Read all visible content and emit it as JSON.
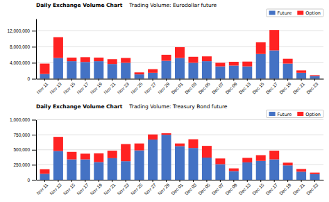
{
  "chart_data": [
    {
      "type": "bar",
      "stacked": true,
      "title": "Daily Exchange Volume Chart",
      "subtitle": "Trading Volume: Eurodollar future",
      "categories": [
        "Nov 11",
        "Nov 13",
        "Nov 15",
        "Nov 17",
        "Nov 19",
        "Nov 21",
        "Nov 23",
        "Nov 25",
        "Nov 27",
        "Nov 29",
        "Dec 01",
        "Dec 03",
        "Dec 05",
        "Dec 07",
        "Dec 09",
        "Dec 13",
        "Dec 15",
        "Dec 17",
        "Dec 19",
        "Dec 21",
        "Dec 23"
      ],
      "series": [
        {
          "name": "Future",
          "color": "#4472c4",
          "values": [
            1200000,
            5200000,
            4400000,
            4200000,
            4400000,
            3700000,
            4000000,
            1100000,
            1500000,
            4500000,
            5200000,
            4000000,
            4400000,
            3100000,
            3300000,
            3100000,
            6200000,
            7100000,
            3800000,
            1500000,
            700000
          ]
        },
        {
          "name": "Option",
          "color": "#ff2222",
          "values": [
            2600000,
            5200000,
            900000,
            1200000,
            900000,
            1200000,
            1200000,
            500000,
            900000,
            1500000,
            2700000,
            1500000,
            1200000,
            900000,
            950000,
            1200000,
            2900000,
            5100000,
            1200000,
            600000,
            200000
          ]
        }
      ],
      "ylim": [
        0,
        15000000
      ],
      "yticks": [
        0,
        {
          "value": 4000000,
          "label": "4,000,000"
        },
        {
          "value": 8000000,
          "label": "8,000,000"
        },
        {
          "value": 12000000,
          "label": "12,000,000"
        }
      ],
      "grid": true,
      "legend": "upper right"
    },
    {
      "type": "bar",
      "stacked": true,
      "title": "Daily Exchange Volume Chart",
      "subtitle": "Trading Volume: Treasury Bond future",
      "categories": [
        "Nov 11",
        "Nov 13",
        "Nov 15",
        "Nov 17",
        "Nov 19",
        "Nov 21",
        "Nov 23",
        "Nov 25",
        "Nov 27",
        "Nov 29",
        "Dec 01",
        "Dec 03",
        "Dec 05",
        "Dec 07",
        "Dec 09",
        "Dec 13",
        "Dec 15",
        "Dec 17",
        "Dec 19",
        "Dec 21",
        "Dec 23"
      ],
      "series": [
        {
          "name": "Future",
          "color": "#4472c4",
          "values": [
            100000,
            480000,
            340000,
            340000,
            295000,
            360000,
            310000,
            490000,
            670000,
            750000,
            560000,
            530000,
            370000,
            260000,
            145000,
            290000,
            315000,
            340000,
            240000,
            135000,
            95000
          ]
        },
        {
          "name": "Option",
          "color": "#ff2222",
          "values": [
            75000,
            235000,
            125000,
            95000,
            145000,
            125000,
            285000,
            115000,
            85000,
            25000,
            45000,
            145000,
            195000,
            95000,
            45000,
            75000,
            95000,
            145000,
            45000,
            45000,
            25000
          ]
        }
      ],
      "ylim": [
        0,
        1000000
      ],
      "yticks": [
        0,
        {
          "value": 250000,
          "label": "250,000"
        },
        {
          "value": 500000,
          "label": "500,000"
        },
        {
          "value": 750000,
          "label": "750,000"
        },
        {
          "value": 1000000,
          "label": "1,000,000"
        }
      ],
      "grid": true,
      "legend": "upper right"
    }
  ]
}
